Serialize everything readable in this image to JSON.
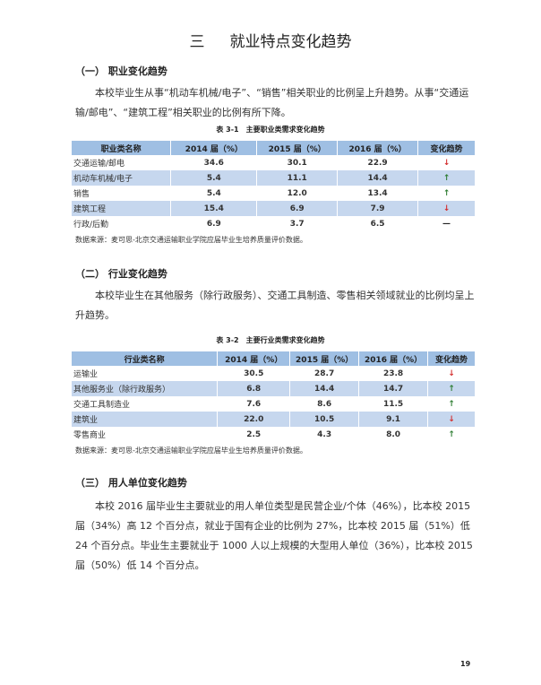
{
  "chapter": {
    "number": "三",
    "title": "就业特点变化趋势"
  },
  "s1": {
    "heading": "（一） 职业变化趋势",
    "paragraph": "本校毕业生从事“机动车机械/电子”、“销售”相关职业的比例呈上升趋势。从事“交通运输/邮电”、“建筑工程”相关职业的比例有所下降。",
    "caption": "表 3-1　主要职业类需求变化趋势",
    "headers": [
      "职业类名称",
      "2014 届（%）",
      "2015 届（%）",
      "2016 届（%）",
      "变化趋势"
    ],
    "rows": [
      {
        "name": "交通运输/邮电",
        "y2014": "34.6",
        "y2015": "30.1",
        "y2016": "22.9",
        "trend": "↓",
        "trend_type": "down"
      },
      {
        "name": "机动车机械/电子",
        "y2014": "5.4",
        "y2015": "11.1",
        "y2016": "14.4",
        "trend": "↑",
        "trend_type": "up"
      },
      {
        "name": "销售",
        "y2014": "5.4",
        "y2015": "12.0",
        "y2016": "13.4",
        "trend": "↑",
        "trend_type": "up"
      },
      {
        "name": "建筑工程",
        "y2014": "15.4",
        "y2015": "6.9",
        "y2016": "7.9",
        "trend": "↓",
        "trend_type": "down"
      },
      {
        "name": "行政/后勤",
        "y2014": "6.9",
        "y2015": "3.7",
        "y2016": "6.5",
        "trend": "—",
        "trend_type": "flat"
      }
    ],
    "source": "数据来源：麦可思-北京交通运输职业学院应届毕业生培养质量评价数据。"
  },
  "s2": {
    "heading": "（二） 行业变化趋势",
    "paragraph": "本校毕业生在其他服务（除行政服务）、交通工具制造、零售相关领域就业的比例均呈上升趋势。",
    "caption": "表 3-2　主要行业类需求变化趋势",
    "headers": [
      "行业类名称",
      "2014 届（%）",
      "2015 届（%）",
      "2016 届（%）",
      "变化趋势"
    ],
    "rows": [
      {
        "name": "运输业",
        "y2014": "30.5",
        "y2015": "28.7",
        "y2016": "23.8",
        "trend": "↓",
        "trend_type": "down"
      },
      {
        "name": "其他服务业（除行政服务）",
        "y2014": "6.8",
        "y2015": "14.4",
        "y2016": "14.7",
        "trend": "↑",
        "trend_type": "up"
      },
      {
        "name": "交通工具制造业",
        "y2014": "7.6",
        "y2015": "8.6",
        "y2016": "11.5",
        "trend": "↑",
        "trend_type": "up"
      },
      {
        "name": "建筑业",
        "y2014": "22.0",
        "y2015": "10.5",
        "y2016": "9.1",
        "trend": "↓",
        "trend_type": "down"
      },
      {
        "name": "零售商业",
        "y2014": "2.5",
        "y2015": "4.3",
        "y2016": "8.0",
        "trend": "↑",
        "trend_type": "up"
      }
    ],
    "source": "数据来源：麦可思-北京交通运输职业学院应届毕业生培养质量评价数据。"
  },
  "s3": {
    "heading": "（三） 用人单位变化趋势",
    "paragraph": "本校 2016 届毕业生主要就业的用人单位类型是民营企业/个体（46%），比本校 2015 届（34%）高 12 个百分点，就业于国有企业的比例为 27%，比本校 2015 届（51%）低 24 个百分点。毕业生主要就业于 1000 人以上规模的大型用人单位（36%），比本校 2015 届（50%）低 14 个百分点。"
  },
  "page_number": "19",
  "colors": {
    "header_bg": "#9fbfe3",
    "alt_row_bg": "#c6d7ee",
    "up": "#2e7d32",
    "down": "#d32f2f"
  }
}
